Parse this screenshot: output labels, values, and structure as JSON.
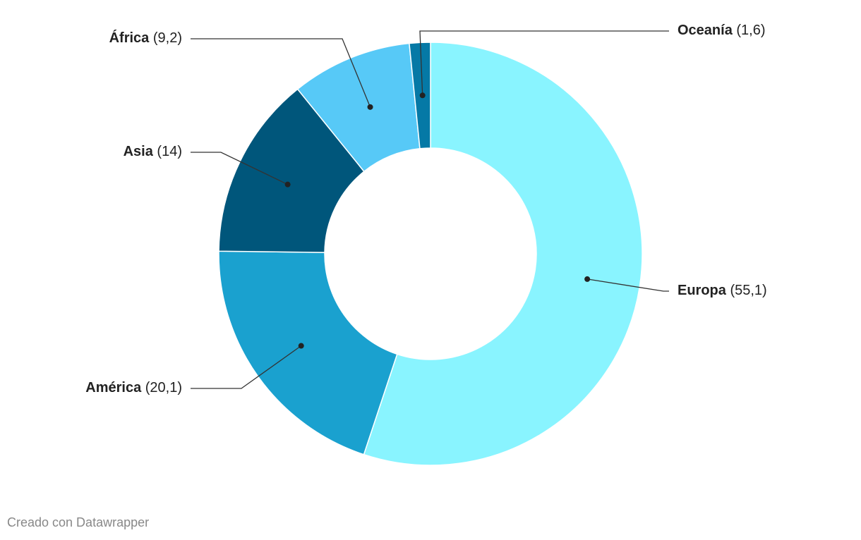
{
  "chart_data": {
    "type": "donut",
    "categories": [
      "Europa",
      "América",
      "Asia",
      "África",
      "Oceanía"
    ],
    "values": [
      55.1,
      20.1,
      14,
      9.2,
      1.6
    ],
    "value_labels": [
      "(55,1)",
      "(20,1)",
      "(14)",
      "(9,2)",
      "(1,6)"
    ],
    "colors": [
      "#89f4ff",
      "#1aa1cf",
      "#00567b",
      "#57c9f7",
      "#0579a6"
    ],
    "credit": "Creado con Datawrapper"
  }
}
